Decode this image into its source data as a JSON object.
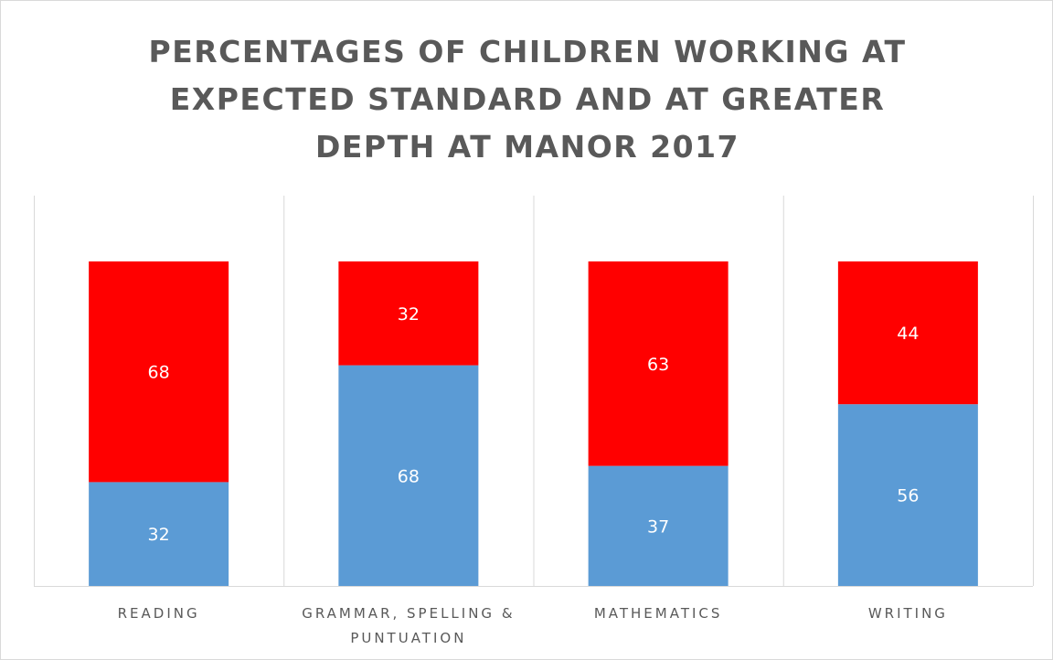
{
  "chart_data": {
    "type": "bar",
    "stacked": true,
    "title": "PERCENTAGES OF CHILDREN WORKING AT EXPECTED STANDARD AND AT GREATER DEPTH AT MANOR 2017",
    "title_lines": [
      "PERCENTAGES OF CHILDREN WORKING AT",
      "EXPECTED STANDARD AND AT GREATER",
      "DEPTH AT MANOR 2017"
    ],
    "categories": [
      "READING",
      "GRAMMAR, SPELLING & PUNTUATION",
      "MATHEMATICS",
      "WRITING"
    ],
    "category_lines": [
      [
        "READING"
      ],
      [
        "GRAMMAR, SPELLING &",
        "PUNTUATION"
      ],
      [
        "MATHEMATICS"
      ],
      [
        "WRITING"
      ]
    ],
    "series": [
      {
        "values": [
          32,
          68,
          37,
          56
        ],
        "color": "#5b9bd5"
      },
      {
        "values": [
          68,
          32,
          63,
          44
        ],
        "color": "#ff0000"
      }
    ],
    "ylim": [
      0,
      100
    ],
    "xlabel": "",
    "ylabel": "",
    "vertical_gridlines": true,
    "legend": "none",
    "data_labels": true
  }
}
